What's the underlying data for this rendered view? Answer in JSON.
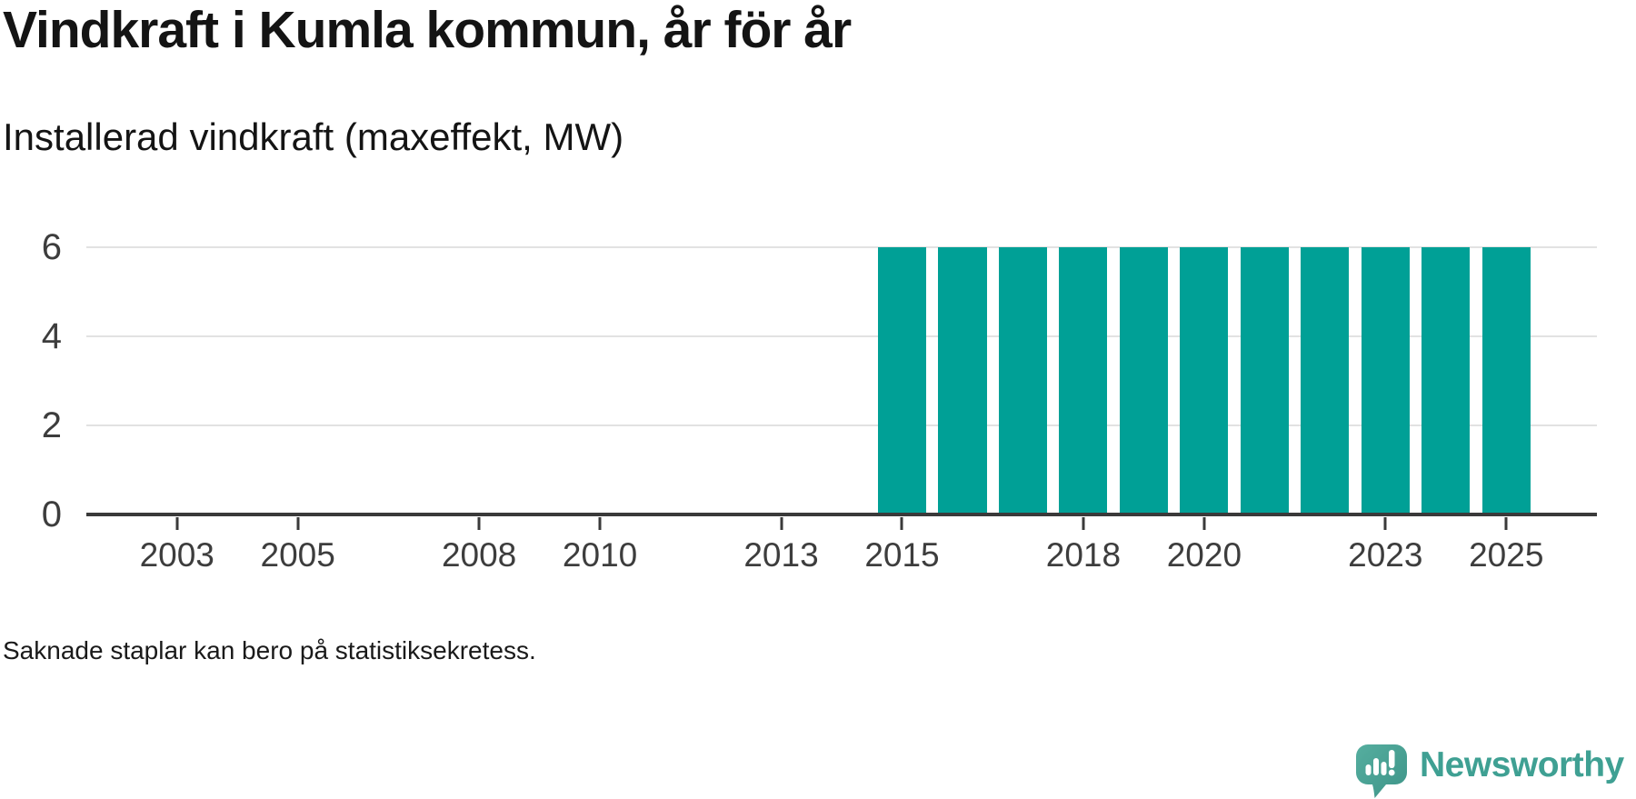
{
  "header": {
    "title": "Vindkraft i Kumla kommun, år för år",
    "subtitle": "Installerad vindkraft (maxeffekt, MW)"
  },
  "footer": {
    "note": "Saknade staplar kan bero på statistiksekretess.",
    "brand": "Newsworthy"
  },
  "colors": {
    "bar": "#00a096",
    "axis": "#3a3a3a",
    "grid": "#e2e2e2",
    "text": "#141414",
    "tick_label": "#3d3d3d",
    "brand_text": "#3fa093",
    "brand_icon_light": "#55ae9f",
    "brand_icon_dark": "#3e9488"
  },
  "chart_data": {
    "type": "bar",
    "title": "Vindkraft i Kumla kommun, år för år",
    "subtitle": "Installerad vindkraft (maxeffekt, MW)",
    "unit": "MW",
    "x_domain": [
      2001.5,
      2026.5
    ],
    "x_ticks": [
      2003,
      2005,
      2008,
      2010,
      2013,
      2015,
      2018,
      2020,
      2023,
      2025
    ],
    "y_ticks": [
      0,
      2,
      4,
      6
    ],
    "ylim": [
      0,
      6
    ],
    "bar_width_years": 0.8,
    "grid": true,
    "legend_position": "none",
    "series": [
      {
        "name": "Installerad vindkraft (maxeffekt, MW)",
        "points": [
          {
            "x": 2015,
            "y": 6
          },
          {
            "x": 2016,
            "y": 6
          },
          {
            "x": 2017,
            "y": 6
          },
          {
            "x": 2018,
            "y": 6
          },
          {
            "x": 2019,
            "y": 6
          },
          {
            "x": 2020,
            "y": 6
          },
          {
            "x": 2021,
            "y": 6
          },
          {
            "x": 2022,
            "y": 6
          },
          {
            "x": 2023,
            "y": 6
          },
          {
            "x": 2024,
            "y": 6
          },
          {
            "x": 2025,
            "y": 6
          }
        ]
      }
    ],
    "annotation": "Saknade staplar kan bero på statistiksekretess."
  }
}
